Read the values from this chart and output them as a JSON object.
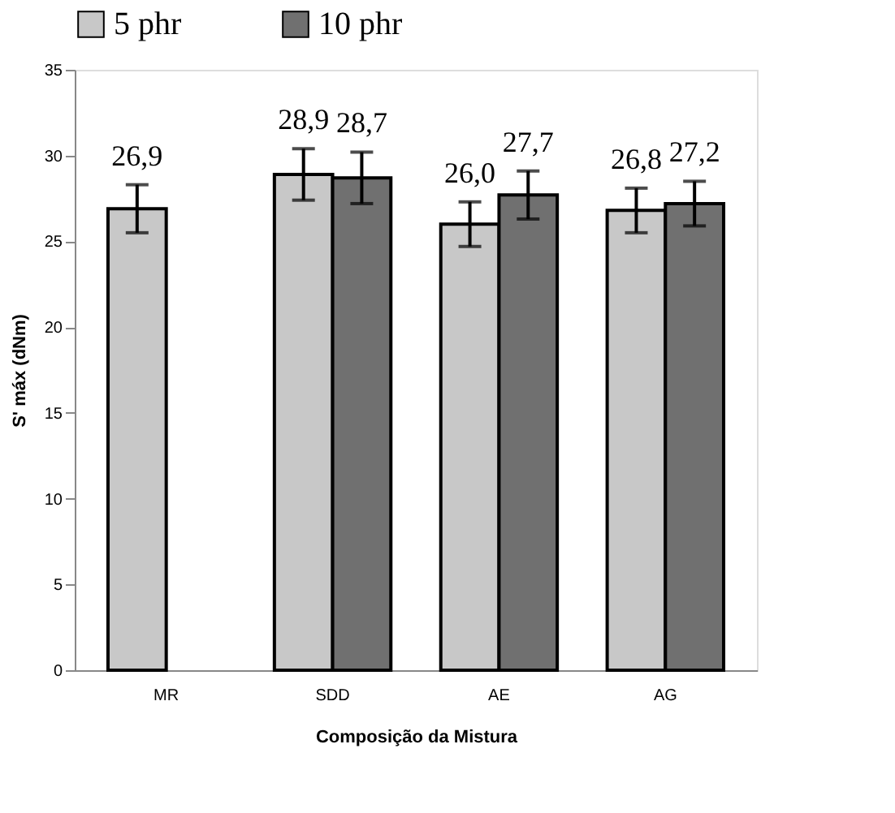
{
  "chart_data": {
    "type": "bar",
    "xlabel": "Composição da Mistura",
    "ylabel": "S' máx (dNm)",
    "categories": [
      "MR",
      "SDD",
      "AE",
      "AG"
    ],
    "series": [
      {
        "name": "5 phr",
        "color": "#c8c8c8",
        "values": [
          26.9,
          28.9,
          26.0,
          26.8
        ],
        "errors": [
          1.4,
          1.5,
          1.3,
          1.3
        ],
        "value_labels": [
          "26,9",
          "28,9",
          "26,0",
          "26,8"
        ]
      },
      {
        "name": "10 phr",
        "color": "#707070",
        "values": [
          null,
          28.7,
          27.7,
          27.2
        ],
        "errors": [
          null,
          1.5,
          1.4,
          1.3
        ],
        "value_labels": [
          null,
          "28,7",
          "27,7",
          "27,2"
        ]
      }
    ],
    "ylim": [
      0,
      35
    ],
    "yticks": [
      0,
      5,
      10,
      15,
      20,
      25,
      30,
      35
    ],
    "legend": "top",
    "grid": false
  }
}
